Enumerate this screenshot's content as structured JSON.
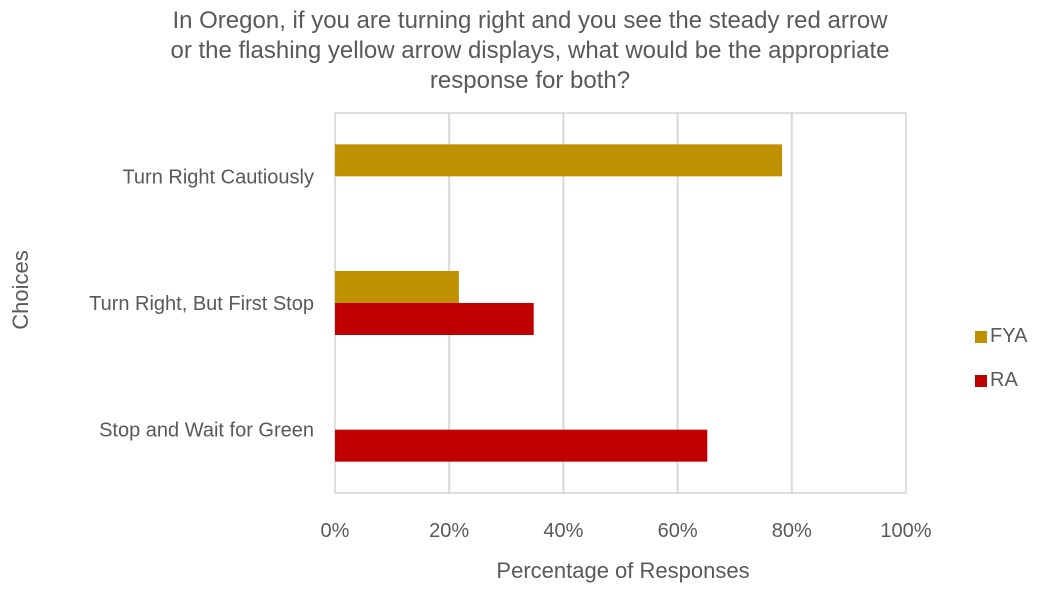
{
  "chart_data": {
    "type": "bar",
    "orientation": "horizontal",
    "title": "In Oregon, if you are turning right and you see the steady red arrow or the flashing yellow arrow displays, what would be the appropriate response for both?",
    "xlabel": "Percentage of Responses",
    "ylabel": "Choices",
    "categories": [
      "Turn Right Cautiously",
      "Turn Right, But First Stop",
      "Stop and Wait for Green"
    ],
    "series": [
      {
        "name": "FYA",
        "color": "#BF9000",
        "values": [
          78.3,
          21.7,
          0
        ]
      },
      {
        "name": "RA",
        "color": "#C00000",
        "values": [
          0,
          34.8,
          65.2
        ]
      }
    ],
    "xlim": [
      0,
      100
    ],
    "xticks": [
      0,
      20,
      40,
      60,
      80,
      100
    ],
    "xtick_labels": [
      "0%",
      "20%",
      "40%",
      "60%",
      "80%",
      "100%"
    ],
    "grid": true,
    "legend_position": "right"
  }
}
